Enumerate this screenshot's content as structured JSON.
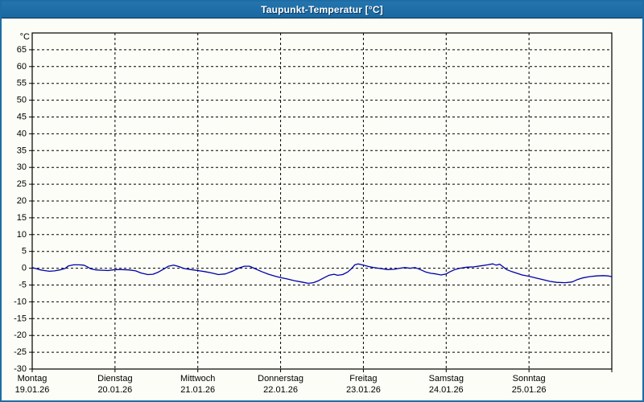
{
  "title": "Taupunkt-Temperatur [°C]",
  "colors": {
    "titlebar": "#1D6CA5",
    "titlebar_border": "#0A3050",
    "window_border": "#1D6CA5",
    "background": "#FBFDF6",
    "grid": "#000000",
    "axis": "#000000",
    "label": "#000000",
    "series": "#0000AA",
    "title_text": "#FFFFFF"
  },
  "chart_data": {
    "type": "line",
    "title": "Taupunkt-Temperatur [°C]",
    "unit_label": "°C",
    "grid": "dashed",
    "legend": "none",
    "ylim": [
      -30,
      70
    ],
    "yticks": [
      -30,
      -25,
      -20,
      -15,
      -10,
      -5,
      0,
      5,
      10,
      15,
      20,
      25,
      30,
      35,
      40,
      45,
      50,
      55,
      60,
      65
    ],
    "xlim_hours": [
      0,
      168
    ],
    "x_days": [
      {
        "weekday": "Montag",
        "date": "19.01.26",
        "hour": 0
      },
      {
        "weekday": "Dienstag",
        "date": "20.01.26",
        "hour": 24
      },
      {
        "weekday": "Mittwoch",
        "date": "21.01.26",
        "hour": 48
      },
      {
        "weekday": "Donnerstag",
        "date": "22.01.26",
        "hour": 72
      },
      {
        "weekday": "Freitag",
        "date": "23.01.26",
        "hour": 96
      },
      {
        "weekday": "Samstag",
        "date": "24.01.26",
        "hour": 120
      },
      {
        "weekday": "Sonntag",
        "date": "25.01.26",
        "hour": 144
      }
    ],
    "series": [
      {
        "name": "Taupunkt-Temperatur",
        "color": "#0000AA",
        "points": [
          [
            0,
            0.2
          ],
          [
            1,
            -0.1
          ],
          [
            2,
            -0.4
          ],
          [
            3.5,
            -0.7
          ],
          [
            5,
            -0.9
          ],
          [
            6.5,
            -0.8
          ],
          [
            8,
            -0.5
          ],
          [
            9.5,
            -0.1
          ],
          [
            10.5,
            0.7
          ],
          [
            12,
            1.0
          ],
          [
            13.5,
            1.0
          ],
          [
            15,
            0.9
          ],
          [
            16,
            0.4
          ],
          [
            17,
            -0.2
          ],
          [
            18.5,
            -0.5
          ],
          [
            20,
            -0.6
          ],
          [
            22,
            -0.7
          ],
          [
            24,
            -0.4
          ],
          [
            26,
            -0.4
          ],
          [
            28,
            -0.5
          ],
          [
            30,
            -0.8
          ],
          [
            31.5,
            -1.4
          ],
          [
            33.5,
            -1.9
          ],
          [
            35,
            -1.8
          ],
          [
            36.5,
            -1.2
          ],
          [
            38,
            -0.3
          ],
          [
            39.5,
            0.6
          ],
          [
            41,
            0.9
          ],
          [
            42.5,
            0.5
          ],
          [
            44,
            -0.1
          ],
          [
            46,
            -0.4
          ],
          [
            48,
            -0.7
          ],
          [
            50,
            -1.0
          ],
          [
            52,
            -1.4
          ],
          [
            54,
            -1.9
          ],
          [
            56,
            -1.7
          ],
          [
            58,
            -0.9
          ],
          [
            60,
            0.1
          ],
          [
            61.5,
            0.6
          ],
          [
            63,
            0.6
          ],
          [
            64.5,
            -0.1
          ],
          [
            66.5,
            -1.0
          ],
          [
            68.5,
            -1.8
          ],
          [
            70.5,
            -2.4
          ],
          [
            72,
            -2.8
          ],
          [
            74,
            -3.2
          ],
          [
            76,
            -3.7
          ],
          [
            78,
            -4.1
          ],
          [
            80,
            -4.5
          ],
          [
            81.5,
            -4.3
          ],
          [
            83,
            -3.7
          ],
          [
            84.5,
            -2.9
          ],
          [
            86,
            -2.1
          ],
          [
            87.5,
            -1.8
          ],
          [
            88.5,
            -2.1
          ],
          [
            90,
            -1.9
          ],
          [
            91.5,
            -1.1
          ],
          [
            92.5,
            -0.2
          ],
          [
            93.5,
            1.0
          ],
          [
            94.5,
            1.3
          ],
          [
            96,
            0.9
          ],
          [
            97.5,
            0.5
          ],
          [
            99,
            0.2
          ],
          [
            101,
            -0.1
          ],
          [
            103,
            -0.4
          ],
          [
            105,
            -0.3
          ],
          [
            106.5,
            0.0
          ],
          [
            108,
            0.2
          ],
          [
            109.5,
            0.0
          ],
          [
            111,
            0.2
          ],
          [
            112.5,
            -0.4
          ],
          [
            114,
            -1.1
          ],
          [
            115.5,
            -1.5
          ],
          [
            117,
            -1.7
          ],
          [
            118.5,
            -2.0
          ],
          [
            120,
            -1.7
          ],
          [
            121,
            -1.1
          ],
          [
            122.5,
            -0.4
          ],
          [
            124,
            0.0
          ],
          [
            126,
            0.3
          ],
          [
            128,
            0.4
          ],
          [
            130,
            0.7
          ],
          [
            132,
            1.0
          ],
          [
            133.5,
            1.3
          ],
          [
            134.5,
            0.9
          ],
          [
            135.5,
            1.2
          ],
          [
            136.5,
            0.4
          ],
          [
            137.5,
            -0.4
          ],
          [
            139,
            -1.0
          ],
          [
            140.5,
            -1.5
          ],
          [
            142,
            -2.0
          ],
          [
            144,
            -2.4
          ],
          [
            146,
            -2.9
          ],
          [
            148,
            -3.4
          ],
          [
            150,
            -3.9
          ],
          [
            152,
            -4.2
          ],
          [
            154.5,
            -4.3
          ],
          [
            156.5,
            -4.1
          ],
          [
            158,
            -3.4
          ],
          [
            159.5,
            -2.9
          ],
          [
            161.5,
            -2.5
          ],
          [
            163.5,
            -2.3
          ],
          [
            165.5,
            -2.2
          ],
          [
            167,
            -2.3
          ],
          [
            168,
            -2.5
          ]
        ]
      }
    ]
  }
}
